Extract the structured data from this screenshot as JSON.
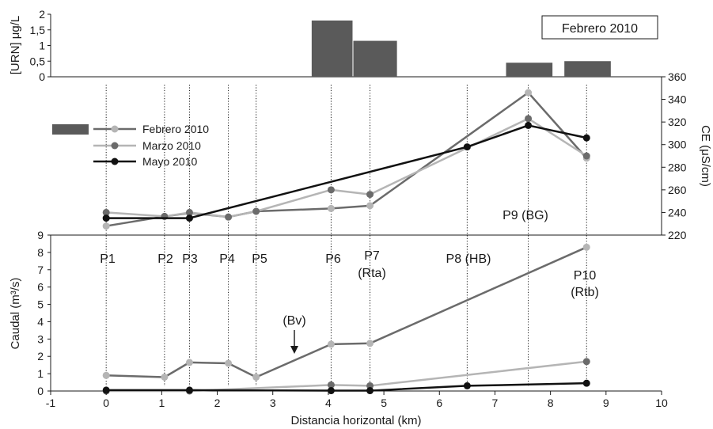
{
  "chart_data": [
    {
      "type": "bar",
      "ylabel": "[URN] μg/L",
      "ylim": [
        0,
        2
      ],
      "yticks": [
        {
          "v": 0,
          "label": "0"
        },
        {
          "v": 0.5,
          "label": "0,5"
        },
        {
          "v": 1,
          "label": "1"
        },
        {
          "v": 1.5,
          "label": "1,5"
        },
        {
          "v": 2,
          "label": "2"
        }
      ],
      "badge": "Febrero 2010",
      "bars": [
        {
          "x0": 3.7,
          "x1": 4.45,
          "value": 1.8
        },
        {
          "x0": 4.45,
          "x1": 5.25,
          "value": 1.15
        },
        {
          "x0": 7.2,
          "x1": 8.05,
          "value": 0.45
        },
        {
          "x0": 8.25,
          "x1": 9.1,
          "value": 0.5
        }
      ]
    },
    {
      "type": "line",
      "ylabel": "CE (μS/cm)",
      "ylim": [
        220,
        360
      ],
      "yticks": [
        "220",
        "240",
        "260",
        "280",
        "300",
        "320",
        "340",
        "360"
      ],
      "series": [
        {
          "name": "Febrero 2010",
          "x": [
            0,
            1.05,
            1.5,
            2.2,
            2.7,
            4.05,
            4.75,
            7.6,
            8.65
          ],
          "y": [
            228,
            236.5,
            239.5,
            236,
            241,
            243.5,
            246,
            346,
            288
          ]
        },
        {
          "name": "Marzo 2010",
          "x": [
            0,
            1.05,
            1.5,
            2.2,
            2.7,
            4.05,
            4.75,
            7.6,
            8.65
          ],
          "y": [
            240,
            236.5,
            240,
            236,
            241,
            260,
            256,
            323,
            290
          ]
        },
        {
          "name": "Mayo 2010",
          "x": [
            0,
            1.5,
            6.5,
            7.6,
            8.65
          ],
          "y": [
            235,
            235,
            298,
            317,
            306
          ]
        }
      ],
      "annotation": "P9 (BG)"
    },
    {
      "type": "line",
      "ylabel": "Caudal (m³/s)",
      "xlabel": "Distancia horizontal (km)",
      "xlim": [
        -1,
        10
      ],
      "ylim": [
        0,
        9
      ],
      "xticks": [
        "-1",
        "0",
        "1",
        "2",
        "3",
        "4",
        "5",
        "6",
        "7",
        "8",
        "9",
        "10"
      ],
      "yticks": [
        "0",
        "1",
        "2",
        "3",
        "4",
        "5",
        "6",
        "7",
        "8",
        "9"
      ],
      "series": [
        {
          "name": "Febrero 2010",
          "x": [
            0,
            1.05,
            1.5,
            2.2,
            2.7,
            4.05,
            4.75,
            8.65
          ],
          "y": [
            0.9,
            0.8,
            1.65,
            1.6,
            0.8,
            2.7,
            2.75,
            8.3
          ]
        },
        {
          "name": "Marzo 2010",
          "x": [
            0,
            1.5,
            4.05,
            4.75,
            8.65
          ],
          "y": [
            0.0,
            0.0,
            0.35,
            0.3,
            1.7
          ]
        },
        {
          "name": "Mayo 2010",
          "x": [
            0,
            1.5,
            4.05,
            4.75,
            6.5,
            8.65
          ],
          "y": [
            0.05,
            0.05,
            0.02,
            0.02,
            0.3,
            0.45
          ]
        }
      ],
      "annotations": [
        {
          "text": "P1"
        },
        {
          "text": "P2"
        },
        {
          "text": "P3"
        },
        {
          "text": "P4"
        },
        {
          "text": "P5"
        },
        {
          "text": "P6"
        },
        {
          "text": "P7"
        },
        {
          "text": "(Rta)"
        },
        {
          "text": "P8 (HB)"
        },
        {
          "text": "P10"
        },
        {
          "text": "(Rtb)"
        },
        {
          "text": "(Bv)"
        }
      ]
    }
  ],
  "legend": {
    "entries": [
      {
        "label": "Febrero 2010",
        "line_color": "#6b6b6b",
        "marker_color": "#b5b5b5"
      },
      {
        "label": "Marzo 2010",
        "line_color": "#b5b5b5",
        "marker_color": "#6b6b6b"
      },
      {
        "label": "Mayo 2010",
        "line_color": "#111111",
        "marker_color": "#111111"
      }
    ]
  },
  "stations_x": [
    0,
    1.05,
    1.5,
    2.2,
    2.7,
    4.05,
    4.75,
    6.5,
    7.6,
    8.65
  ],
  "colors": {
    "bar": "#5a5a5a",
    "febrero_line": "#6b6b6b",
    "febrero_marker": "#b5b5b5",
    "marzo_line": "#b5b5b5",
    "marzo_marker": "#6b6b6b",
    "mayo": "#111111"
  }
}
